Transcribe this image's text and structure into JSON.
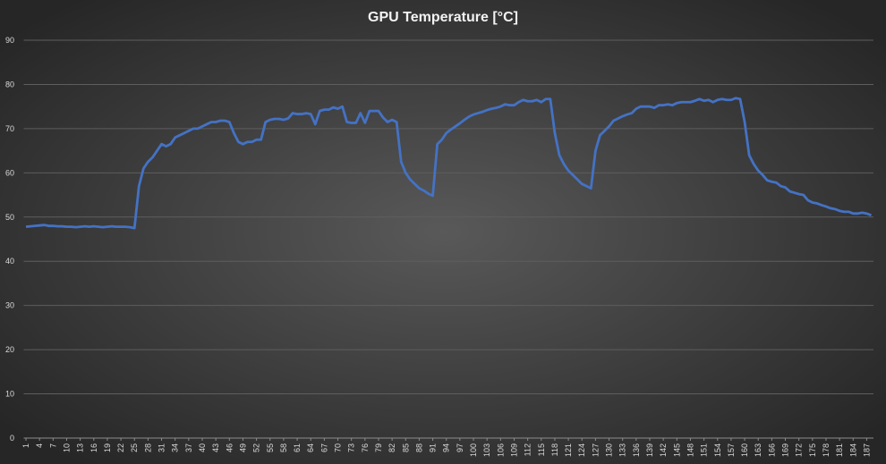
{
  "chart_data": {
    "type": "line",
    "title": "GPU Temperature [°C]",
    "x": [
      1,
      2,
      3,
      4,
      5,
      6,
      7,
      8,
      9,
      10,
      11,
      12,
      13,
      14,
      15,
      16,
      17,
      18,
      19,
      20,
      21,
      22,
      23,
      24,
      25,
      26,
      27,
      28,
      29,
      30,
      31,
      32,
      33,
      34,
      35,
      36,
      37,
      38,
      39,
      40,
      41,
      42,
      43,
      44,
      45,
      46,
      47,
      48,
      49,
      50,
      51,
      52,
      53,
      54,
      55,
      56,
      57,
      58,
      59,
      60,
      61,
      62,
      63,
      64,
      65,
      66,
      67,
      68,
      69,
      70,
      71,
      72,
      73,
      74,
      75,
      76,
      77,
      78,
      79,
      80,
      81,
      82,
      83,
      84,
      85,
      86,
      87,
      88,
      89,
      90,
      91,
      92,
      93,
      94,
      95,
      96,
      97,
      98,
      99,
      100,
      101,
      102,
      103,
      104,
      105,
      106,
      107,
      108,
      109,
      110,
      111,
      112,
      113,
      114,
      115,
      116,
      117,
      118,
      119,
      120,
      121,
      122,
      123,
      124,
      125,
      126,
      127,
      128,
      129,
      130,
      131,
      132,
      133,
      134,
      135,
      136,
      137,
      138,
      139,
      140,
      141,
      142,
      143,
      144,
      145,
      146,
      147,
      148,
      149,
      150,
      151,
      152,
      153,
      154,
      155,
      156,
      157,
      158,
      159,
      160,
      161,
      162,
      163,
      164,
      165,
      166,
      167,
      168,
      169,
      170,
      171,
      172,
      173,
      174,
      175,
      176,
      177,
      178,
      179,
      180,
      181,
      182,
      183,
      184,
      185,
      186,
      187,
      188
    ],
    "series": [
      {
        "name": "GPU Temperature",
        "color": "#4472c4",
        "values": [
          47.8,
          47.9,
          48,
          48.1,
          48.2,
          48,
          48,
          47.9,
          47.9,
          47.8,
          47.8,
          47.7,
          47.8,
          47.9,
          47.8,
          47.9,
          47.8,
          47.7,
          47.8,
          47.9,
          47.8,
          47.8,
          47.8,
          47.7,
          47.5,
          57,
          61,
          62.5,
          63.5,
          65,
          66.5,
          66,
          66.5,
          68,
          68.5,
          69,
          69.5,
          70,
          70,
          70.5,
          71,
          71.5,
          71.5,
          71.8,
          71.8,
          71.5,
          69,
          67,
          66.5,
          67,
          67,
          67.5,
          67.5,
          71.5,
          72,
          72.2,
          72.2,
          72,
          72.3,
          73.5,
          73.3,
          73.3,
          73.5,
          73.3,
          71,
          74,
          74.3,
          74.3,
          74.8,
          74.5,
          75,
          71.5,
          71.3,
          71.3,
          73.5,
          71.3,
          74,
          74,
          74,
          72.5,
          71.5,
          72,
          71.5,
          62.5,
          60,
          58.5,
          57.5,
          56.5,
          56,
          55.3,
          54.8,
          66.5,
          67.5,
          69,
          69.8,
          70.5,
          71.2,
          72,
          72.7,
          73.2,
          73.5,
          73.8,
          74.2,
          74.5,
          74.7,
          75,
          75.5,
          75.3,
          75.3,
          76,
          76.5,
          76.2,
          76.2,
          76.5,
          76,
          76.7,
          76.7,
          69,
          64,
          62,
          60.5,
          59.5,
          58.5,
          57.5,
          57,
          56.5,
          65,
          68.5,
          69.5,
          70.5,
          71.8,
          72.3,
          72.8,
          73.2,
          73.5,
          74.5,
          75,
          75,
          75,
          74.7,
          75.3,
          75.3,
          75.5,
          75.3,
          75.8,
          76,
          76,
          76,
          76.3,
          76.7,
          76.3,
          76.5,
          76,
          76.5,
          76.7,
          76.5,
          76.5,
          76.9,
          76.7,
          71.5,
          64,
          62,
          60.5,
          59.5,
          58.3,
          58,
          57.8,
          57,
          56.7,
          55.8,
          55.5,
          55.2,
          55,
          53.8,
          53.3,
          53.1,
          52.7,
          52.4,
          52,
          51.8,
          51.4,
          51.2,
          51.2,
          50.8,
          50.8,
          51,
          50.8,
          50.4
        ]
      }
    ],
    "xlim": [
      0.5,
      188.5
    ],
    "xticks": [
      1,
      4,
      7,
      10,
      13,
      16,
      19,
      22,
      25,
      28,
      31,
      34,
      37,
      40,
      43,
      46,
      49,
      52,
      55,
      58,
      61,
      64,
      67,
      70,
      73,
      76,
      79,
      82,
      85,
      88,
      91,
      94,
      97,
      100,
      103,
      106,
      109,
      112,
      115,
      118,
      121,
      124,
      127,
      130,
      133,
      136,
      139,
      142,
      145,
      148,
      151,
      154,
      157,
      160,
      163,
      166,
      169,
      172,
      175,
      178,
      181,
      184,
      187
    ],
    "ylim": [
      0,
      90
    ],
    "yticks": [
      0,
      10,
      20,
      30,
      40,
      50,
      60,
      70,
      80,
      90
    ],
    "grid": true
  }
}
